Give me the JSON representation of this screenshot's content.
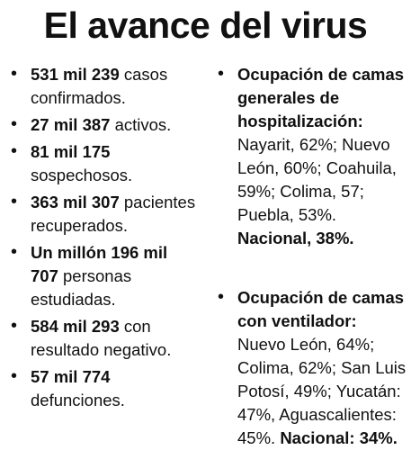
{
  "title": "El avance del virus",
  "left_items": [
    {
      "bold": "531 mil 239",
      "text": " casos confirmados."
    },
    {
      "bold": "27 mil 387",
      "text": " activos."
    },
    {
      "bold": "81 mil 175",
      "text": " sospechosos."
    },
    {
      "bold": "363 mil 307",
      "text": " pacientes recuperados."
    },
    {
      "bold": "Un millón 196 mil 707",
      "text": " personas estudiadas."
    },
    {
      "bold": "584 mil 293",
      "text": " con resultado negativo."
    },
    {
      "bold": "57 mil 774",
      "text": " defunciones."
    }
  ],
  "right_items": [
    {
      "heading": "Ocupación de camas generales de hospitalización:",
      "body": " Nayarit, 62%; Nuevo León, 60%; Coahuila, 59%; Colima, 57; Puebla, 53%. ",
      "national": "Nacional, 38%."
    },
    {
      "heading": "Ocupación de camas con ventilador:",
      "body": " Nuevo León, 64%; Colima, 62%; San Luis Potosí, 49%; Yucatán: 47%, Aguascalientes: 45%. ",
      "national": "Nacional: 34%."
    }
  ]
}
